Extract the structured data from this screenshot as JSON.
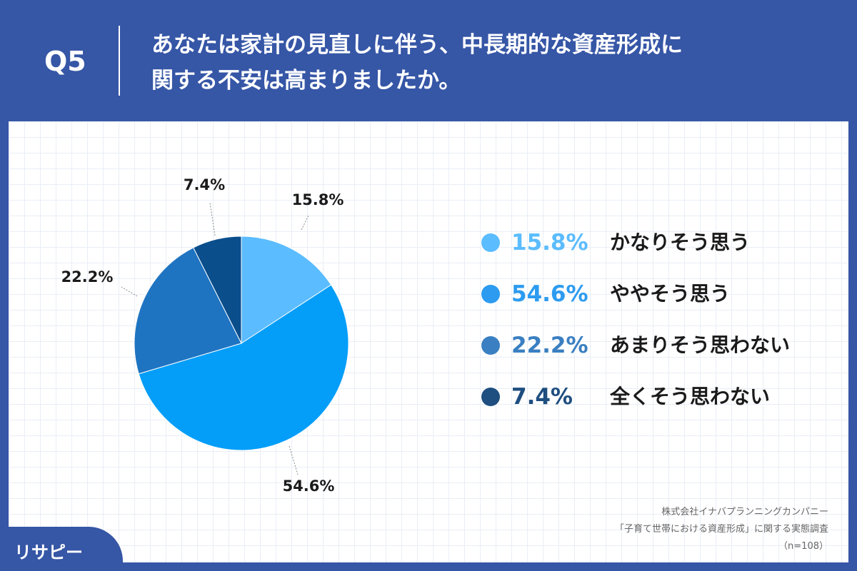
{
  "header": {
    "q_label": "Q5",
    "title_line1": "あなたは家計の見直しに伴う、中長期的な資産形成に",
    "title_line2": "関する不安は高まりましたか。"
  },
  "chart_data": {
    "type": "pie",
    "categories": [
      "かなりそう思う",
      "ややそう思う",
      "あまりそう思わない",
      "全くそう思わない"
    ],
    "values": [
      15.8,
      54.6,
      22.2,
      7.4
    ],
    "value_labels": [
      "15.8%",
      "54.6%",
      "22.2%",
      "7.4%"
    ],
    "colors": [
      "#5bbcff",
      "#049ef8",
      "#1f74c2",
      "#0a4e8c"
    ],
    "legend_placement": "right"
  },
  "legend": [
    {
      "pct": "15.8%",
      "label": "かなりそう思う",
      "color": "#5bbcff"
    },
    {
      "pct": "54.6%",
      "label": "ややそう思う",
      "color": "#2c9bf0"
    },
    {
      "pct": "22.2%",
      "label": "あまりそう思わない",
      "color": "#3a7fc1"
    },
    {
      "pct": "7.4%",
      "label": "全くそう思わない",
      "color": "#1f4e80"
    }
  ],
  "source": {
    "line1": "株式会社イナバプランニングカンパニー",
    "line2": "「子育て世帯における資産形成」に関する実態調査",
    "line3": "（n=108）"
  },
  "logo": {
    "text": "リサピー"
  }
}
